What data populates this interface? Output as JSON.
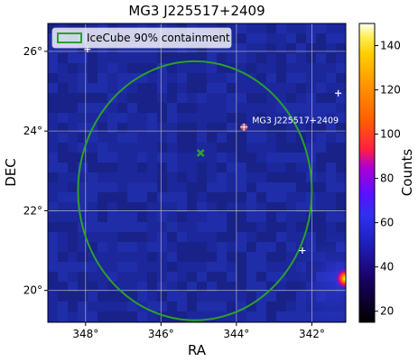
{
  "chart_data": {
    "type": "heatmap",
    "title": "MG3 J225517+2409",
    "xlabel": "RA",
    "ylabel": "DEC",
    "x_ticks": [
      "348°",
      "346°",
      "344°",
      "342°"
    ],
    "y_ticks": [
      "26°",
      "24°",
      "22°",
      "20°"
    ],
    "x_tick_values": [
      348,
      346,
      344,
      342
    ],
    "y_tick_values": [
      26,
      24,
      22,
      20
    ],
    "x_range_deg": [
      349.0,
      341.1
    ],
    "y_range_deg": [
      19.2,
      26.7
    ],
    "x_axis_inverted": true,
    "grid": true,
    "colormap": "gnuplot2",
    "colorbar": {
      "label": "Counts",
      "range": [
        15,
        150
      ],
      "ticks": [
        "20",
        "40",
        "60",
        "80",
        "100",
        "120",
        "140"
      ],
      "tick_values": [
        20,
        40,
        60,
        80,
        100,
        120,
        140
      ]
    },
    "legend": {
      "placement": "top-left",
      "entries": [
        {
          "label": "IceCube 90% containment",
          "color": "#2ca02c"
        }
      ]
    },
    "containment_region": {
      "shape": "ellipse",
      "center_ra_deg": 345.1,
      "center_dec_deg": 22.5,
      "half_width_deg": 3.1,
      "half_height_deg": 3.25,
      "color": "#2ca02c"
    },
    "best_fit_marker": {
      "ra_deg": 344.95,
      "dec_deg": 23.45,
      "symbol": "x",
      "color": "#2ca02c"
    },
    "source": {
      "name": "MG3 J225517+2409",
      "ra_deg": 343.8,
      "dec_deg": 24.1,
      "color": "#e06060"
    },
    "point_sources": [
      {
        "ra_deg": 341.3,
        "dec_deg": 24.95
      },
      {
        "ra_deg": 342.25,
        "dec_deg": 21.0
      },
      {
        "ra_deg": 347.95,
        "dec_deg": 26.05
      }
    ],
    "bright_spot": {
      "ra_deg": 341.1,
      "dec_deg": 20.3,
      "counts": 150
    }
  }
}
